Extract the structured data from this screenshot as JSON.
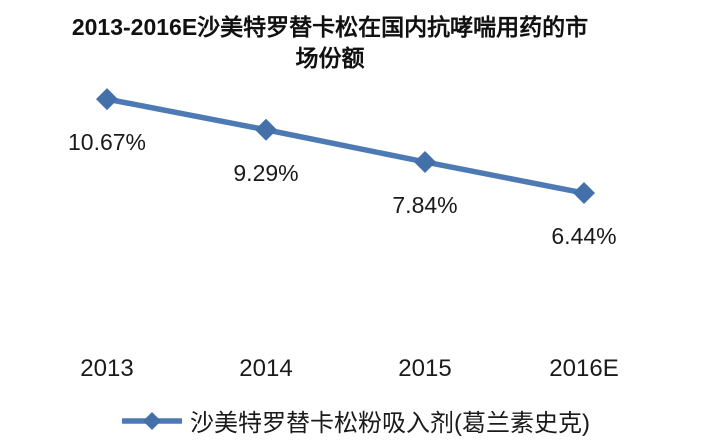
{
  "title": "2013-2016E沙美特罗替卡松在国内抗哮喘用药的市\n场份额",
  "chart_data": {
    "type": "line",
    "title": "2013-2016E沙美特罗替卡松在国内抗哮喘用药的市场份额",
    "categories": [
      "2013",
      "2014",
      "2015",
      "2016E"
    ],
    "series": [
      {
        "name": "沙美特罗替卡松粉吸入剂(葛兰素史克)",
        "values": [
          10.67,
          9.29,
          7.84,
          6.44
        ]
      }
    ],
    "labels": [
      "10.67%",
      "9.29%",
      "7.84%",
      "6.44%"
    ],
    "xlabel": "",
    "ylabel": "",
    "ylim": [
      0,
      12
    ],
    "grid": false,
    "axis_lines": false,
    "legend_position": "bottom",
    "line_color": "#4d7ab4",
    "marker_color": "#4470aa",
    "marker_shape": "diamond",
    "label_color": "#1a1a1a"
  }
}
